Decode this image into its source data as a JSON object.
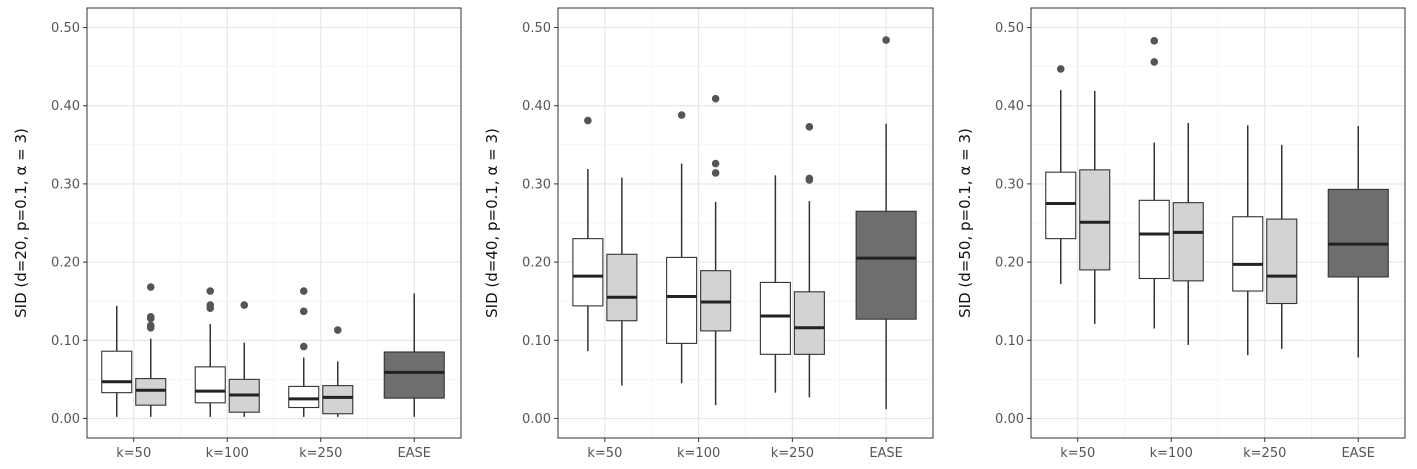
{
  "fills": {
    "k_white": "#ffffff",
    "k_grey": "#d3d3d3",
    "ease": "#6e6e6e"
  },
  "colors": {
    "line": "#333333",
    "outlier": "#555555"
  },
  "chart_data": [
    {
      "type": "box",
      "ylabel": "SID (d=20, p=0.1, α = 3)",
      "ylim": [
        0,
        0.5
      ],
      "yticks": [
        "0.00",
        "0.10",
        "0.20",
        "0.30",
        "0.40",
        "0.50"
      ],
      "categories": [
        "k=50",
        "k=100",
        "k=250",
        "EASE"
      ],
      "grid": true,
      "boxes": [
        {
          "category": "k=50",
          "variant": "white",
          "min": 0.002,
          "q1": 0.033,
          "median": 0.047,
          "q3": 0.086,
          "max": 0.144,
          "outliers": []
        },
        {
          "category": "k=50",
          "variant": "grey",
          "min": 0.002,
          "q1": 0.017,
          "median": 0.036,
          "q3": 0.051,
          "max": 0.102,
          "outliers": [
            0.116,
            0.119,
            0.128,
            0.13,
            0.168
          ]
        },
        {
          "category": "k=100",
          "variant": "white",
          "min": 0.002,
          "q1": 0.02,
          "median": 0.035,
          "q3": 0.066,
          "max": 0.121,
          "outliers": [
            0.141,
            0.145,
            0.163
          ]
        },
        {
          "category": "k=100",
          "variant": "grey",
          "min": 0.002,
          "q1": 0.008,
          "median": 0.03,
          "q3": 0.05,
          "max": 0.097,
          "outliers": [
            0.145
          ]
        },
        {
          "category": "k=250",
          "variant": "white",
          "min": 0.002,
          "q1": 0.014,
          "median": 0.025,
          "q3": 0.041,
          "max": 0.078,
          "outliers": [
            0.092,
            0.137,
            0.163
          ]
        },
        {
          "category": "k=250",
          "variant": "grey",
          "min": 0.002,
          "q1": 0.006,
          "median": 0.027,
          "q3": 0.042,
          "max": 0.073,
          "outliers": [
            0.113
          ]
        },
        {
          "category": "EASE",
          "variant": "ease",
          "min": 0.002,
          "q1": 0.026,
          "median": 0.059,
          "q3": 0.085,
          "max": 0.16,
          "outliers": []
        }
      ]
    },
    {
      "type": "box",
      "ylabel": "SID (d=40, p=0.1, α = 3)",
      "ylim": [
        0,
        0.5
      ],
      "yticks": [
        "0.00",
        "0.10",
        "0.20",
        "0.30",
        "0.40",
        "0.50"
      ],
      "categories": [
        "k=50",
        "k=100",
        "k=250",
        "EASE"
      ],
      "grid": true,
      "boxes": [
        {
          "category": "k=50",
          "variant": "white",
          "min": 0.086,
          "q1": 0.144,
          "median": 0.182,
          "q3": 0.23,
          "max": 0.319,
          "outliers": [
            0.381
          ]
        },
        {
          "category": "k=50",
          "variant": "grey",
          "min": 0.042,
          "q1": 0.125,
          "median": 0.155,
          "q3": 0.21,
          "max": 0.308,
          "outliers": []
        },
        {
          "category": "k=100",
          "variant": "white",
          "min": 0.045,
          "q1": 0.096,
          "median": 0.156,
          "q3": 0.206,
          "max": 0.326,
          "outliers": [
            0.388
          ]
        },
        {
          "category": "k=100",
          "variant": "grey",
          "min": 0.017,
          "q1": 0.112,
          "median": 0.149,
          "q3": 0.189,
          "max": 0.277,
          "outliers": [
            0.314,
            0.326,
            0.409
          ]
        },
        {
          "category": "k=250",
          "variant": "white",
          "min": 0.033,
          "q1": 0.082,
          "median": 0.131,
          "q3": 0.174,
          "max": 0.311,
          "outliers": []
        },
        {
          "category": "k=250",
          "variant": "grey",
          "min": 0.027,
          "q1": 0.082,
          "median": 0.116,
          "q3": 0.162,
          "max": 0.278,
          "outliers": [
            0.305,
            0.307,
            0.373
          ]
        },
        {
          "category": "EASE",
          "variant": "ease",
          "min": 0.012,
          "q1": 0.127,
          "median": 0.205,
          "q3": 0.265,
          "max": 0.377,
          "outliers": [
            0.484
          ]
        }
      ]
    },
    {
      "type": "box",
      "ylabel": "SID (d=50, p=0.1, α = 3)",
      "ylim": [
        0,
        0.5
      ],
      "yticks": [
        "0.00",
        "0.10",
        "0.20",
        "0.30",
        "0.40",
        "0.50"
      ],
      "categories": [
        "k=50",
        "k=100",
        "k=250",
        "EASE"
      ],
      "grid": true,
      "boxes": [
        {
          "category": "k=50",
          "variant": "white",
          "min": 0.172,
          "q1": 0.23,
          "median": 0.275,
          "q3": 0.315,
          "max": 0.42,
          "outliers": [
            0.447
          ]
        },
        {
          "category": "k=50",
          "variant": "grey",
          "min": 0.121,
          "q1": 0.19,
          "median": 0.251,
          "q3": 0.318,
          "max": 0.419,
          "outliers": []
        },
        {
          "category": "k=100",
          "variant": "white",
          "min": 0.115,
          "q1": 0.179,
          "median": 0.236,
          "q3": 0.279,
          "max": 0.353,
          "outliers": [
            0.456,
            0.483
          ]
        },
        {
          "category": "k=100",
          "variant": "grey",
          "min": 0.094,
          "q1": 0.176,
          "median": 0.238,
          "q3": 0.276,
          "max": 0.378,
          "outliers": []
        },
        {
          "category": "k=250",
          "variant": "white",
          "min": 0.081,
          "q1": 0.163,
          "median": 0.197,
          "q3": 0.258,
          "max": 0.375,
          "outliers": []
        },
        {
          "category": "k=250",
          "variant": "grey",
          "min": 0.089,
          "q1": 0.147,
          "median": 0.182,
          "q3": 0.255,
          "max": 0.35,
          "outliers": []
        },
        {
          "category": "EASE",
          "variant": "ease",
          "min": 0.078,
          "q1": 0.181,
          "median": 0.223,
          "q3": 0.293,
          "max": 0.374,
          "outliers": []
        }
      ]
    }
  ]
}
